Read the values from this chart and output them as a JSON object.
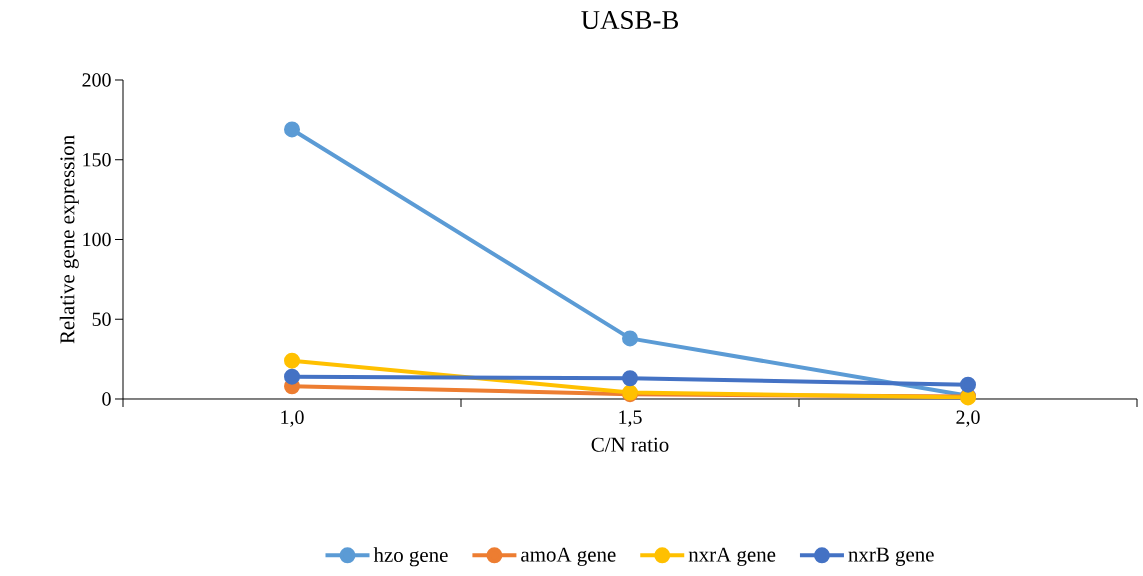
{
  "chart_data": {
    "type": "line",
    "title": "UASB-B",
    "xlabel": "C/N ratio",
    "ylabel": "Relative gene expression",
    "categories": [
      "1,0",
      "1,5",
      "2,0"
    ],
    "series": [
      {
        "name": "hzo gene",
        "color": "#5b9bd5",
        "values": [
          169,
          38,
          2
        ]
      },
      {
        "name": "amoA gene",
        "color": "#ed7d31",
        "values": [
          8,
          3,
          1.5
        ]
      },
      {
        "name": "nxrA gene",
        "color": "#ffc000",
        "values": [
          24,
          4,
          1
        ]
      },
      {
        "name": "nxrB gene",
        "color": "#4472c4",
        "values": [
          14,
          13,
          9
        ]
      }
    ],
    "ylim": [
      0,
      200
    ],
    "yticks": [
      0,
      50,
      100,
      150,
      200
    ],
    "grid": false,
    "legend": "bottom",
    "marker": "circle",
    "line_style": "solid"
  }
}
